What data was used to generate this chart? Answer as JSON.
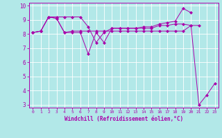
{
  "xlabel": "Windchill (Refroidissement éolien,°C)",
  "bg_color": "#b2e8e8",
  "line_color": "#aa00aa",
  "xlim": [
    -0.5,
    23.5
  ],
  "ylim": [
    2.8,
    10.2
  ],
  "xticks": [
    0,
    1,
    2,
    3,
    4,
    5,
    6,
    7,
    8,
    9,
    10,
    11,
    12,
    13,
    14,
    15,
    16,
    17,
    18,
    19,
    20,
    21,
    22,
    23
  ],
  "yticks": [
    3,
    4,
    5,
    6,
    7,
    8,
    9,
    10
  ],
  "series": [
    [
      8.1,
      8.2,
      9.2,
      9.1,
      8.1,
      8.1,
      8.1,
      6.6,
      8.1,
      7.4,
      8.4,
      8.4,
      8.4,
      8.4,
      8.4,
      8.4,
      8.6,
      8.6,
      8.7,
      8.7,
      8.6,
      3.0,
      3.7,
      4.5
    ],
    [
      8.1,
      8.2,
      9.2,
      9.1,
      8.1,
      8.2,
      8.2,
      8.2,
      8.2,
      8.2,
      8.2,
      8.2,
      8.2,
      8.2,
      8.2,
      8.2,
      8.2,
      8.2,
      8.2,
      8.2,
      8.6,
      8.6,
      null,
      null
    ],
    [
      8.1,
      8.2,
      9.2,
      9.2,
      9.2,
      9.2,
      9.2,
      8.5,
      7.4,
      8.1,
      8.4,
      8.4,
      8.4,
      8.4,
      8.5,
      8.5,
      8.7,
      8.8,
      8.9,
      9.8,
      9.5,
      null,
      null,
      null
    ]
  ]
}
